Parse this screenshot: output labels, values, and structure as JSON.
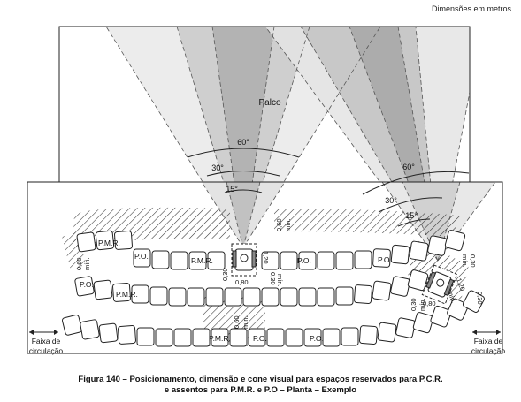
{
  "units_note": "Dimensões em metros",
  "stage_label": "Palco",
  "angles": {
    "a60": "60°",
    "a30": "30°",
    "a15": "15°"
  },
  "seat_labels": {
    "pmr": "P.M.R.",
    "po": "P.O."
  },
  "dims": {
    "width_080": "0,80",
    "depth_120": "1,20",
    "gap_030": "0,30",
    "gap_060": "0,60",
    "min": "mín."
  },
  "circulation": {
    "left_line1": "Faixa de",
    "left_line2": "circulação",
    "right_line1": "Faixa de",
    "right_line2": "circulação"
  },
  "caption": {
    "line1": "Figura 140 – Posicionamento, dimensão e cone visual para espaços reservados para P.C.R.",
    "line2": "e assentos para P.M.R. e P.O – Planta – Exemplo"
  },
  "colors": {
    "cone_light": "#e6e6e6",
    "cone_mid": "#c4c4c4",
    "cone_dark": "#8e8e8e",
    "line": "#222222",
    "hatch": "#333333"
  }
}
